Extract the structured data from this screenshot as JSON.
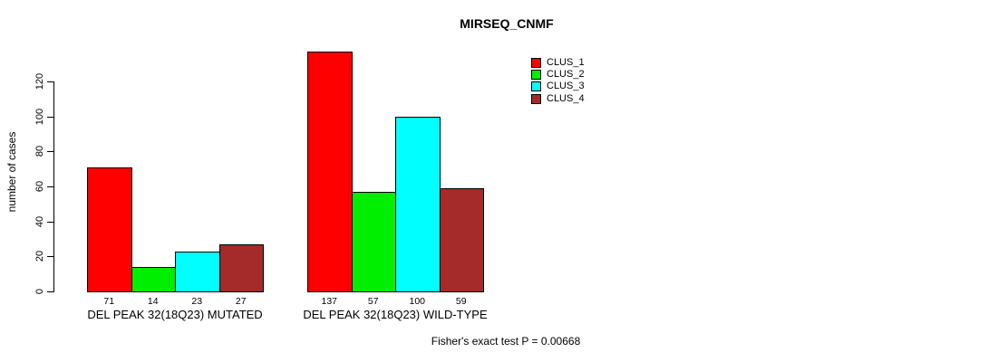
{
  "chart_data": {
    "type": "bar",
    "title": "MIRSEQ_CNMF",
    "xlabel": "",
    "ylabel": "number of cases",
    "ylim": [
      0,
      120
    ],
    "yticks": [
      0,
      20,
      40,
      60,
      80,
      100,
      120
    ],
    "grid": false,
    "legend_position": "right-top",
    "categories": [
      "DEL PEAK 32(18Q23) MUTATED",
      "DEL PEAK 32(18Q23) WILD-TYPE"
    ],
    "series": [
      {
        "name": "CLUS_1",
        "color": "#ff0000",
        "values": [
          71,
          137
        ]
      },
      {
        "name": "CLUS_2",
        "color": "#00ee00",
        "values": [
          14,
          57
        ]
      },
      {
        "name": "CLUS_3",
        "color": "#00ffff",
        "values": [
          23,
          100
        ]
      },
      {
        "name": "CLUS_4",
        "color": "#a52a2a",
        "values": [
          27,
          59
        ]
      }
    ],
    "bar_value_labels": [
      [
        71,
        14,
        23,
        27
      ],
      [
        137,
        57,
        100,
        59
      ]
    ],
    "footnote": "Fisher's exact test P = 0.00668"
  }
}
